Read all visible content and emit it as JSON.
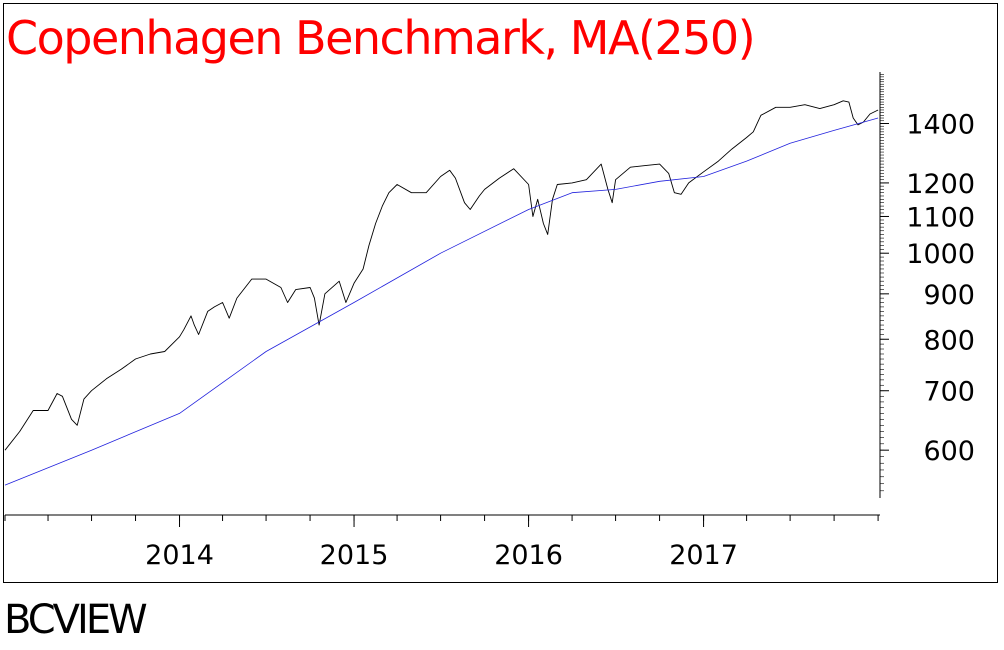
{
  "chart_data": {
    "type": "line",
    "title": "Copenhagen Benchmark, MA(250)",
    "title_color": "#ff0000",
    "y_scale": "log",
    "ylim": [
      530,
      1600
    ],
    "y_ticks": [
      600,
      700,
      800,
      900,
      1000,
      1100,
      1200,
      1400
    ],
    "xlim": [
      "2013-01-01",
      "2018-01-05"
    ],
    "x_ticks": [
      "2014",
      "2015",
      "2016",
      "2017"
    ],
    "x_tick_positions": [
      "2014-01-01",
      "2015-01-01",
      "2016-01-01",
      "2017-01-01"
    ],
    "grid": false,
    "series": [
      {
        "color": "#000000",
        "points": [
          [
            "2013-01-01",
            600
          ],
          [
            "2013-02-01",
            630
          ],
          [
            "2013-03-01",
            665
          ],
          [
            "2013-04-01",
            665
          ],
          [
            "2013-04-20",
            695
          ],
          [
            "2013-05-01",
            690
          ],
          [
            "2013-05-20",
            650
          ],
          [
            "2013-06-01",
            640
          ],
          [
            "2013-06-15",
            685
          ],
          [
            "2013-07-01",
            700
          ],
          [
            "2013-08-01",
            722
          ],
          [
            "2013-09-01",
            740
          ],
          [
            "2013-10-01",
            760
          ],
          [
            "2013-11-01",
            770
          ],
          [
            "2013-12-01",
            775
          ],
          [
            "2014-01-01",
            805
          ],
          [
            "2014-01-10",
            820
          ],
          [
            "2014-01-25",
            850
          ],
          [
            "2014-02-01",
            830
          ],
          [
            "2014-02-10",
            810
          ],
          [
            "2014-03-01",
            860
          ],
          [
            "2014-03-15",
            870
          ],
          [
            "2014-04-01",
            880
          ],
          [
            "2014-04-15",
            845
          ],
          [
            "2014-05-01",
            890
          ],
          [
            "2014-06-01",
            935
          ],
          [
            "2014-07-01",
            935
          ],
          [
            "2014-08-01",
            915
          ],
          [
            "2014-08-15",
            880
          ],
          [
            "2014-09-01",
            910
          ],
          [
            "2014-10-01",
            915
          ],
          [
            "2014-10-10",
            890
          ],
          [
            "2014-10-20",
            830
          ],
          [
            "2014-11-01",
            900
          ],
          [
            "2014-12-01",
            930
          ],
          [
            "2014-12-15",
            880
          ],
          [
            "2015-01-01",
            925
          ],
          [
            "2015-01-20",
            960
          ],
          [
            "2015-02-01",
            1020
          ],
          [
            "2015-02-15",
            1080
          ],
          [
            "2015-03-01",
            1130
          ],
          [
            "2015-03-15",
            1170
          ],
          [
            "2015-04-01",
            1195
          ],
          [
            "2015-05-01",
            1170
          ],
          [
            "2015-06-01",
            1170
          ],
          [
            "2015-07-01",
            1220
          ],
          [
            "2015-07-20",
            1240
          ],
          [
            "2015-08-01",
            1215
          ],
          [
            "2015-08-20",
            1140
          ],
          [
            "2015-09-01",
            1120
          ],
          [
            "2015-09-20",
            1160
          ],
          [
            "2015-10-01",
            1180
          ],
          [
            "2015-11-01",
            1215
          ],
          [
            "2015-12-01",
            1245
          ],
          [
            "2016-01-01",
            1195
          ],
          [
            "2016-01-10",
            1100
          ],
          [
            "2016-01-20",
            1150
          ],
          [
            "2016-02-01",
            1080
          ],
          [
            "2016-02-10",
            1050
          ],
          [
            "2016-02-20",
            1150
          ],
          [
            "2016-03-01",
            1195
          ],
          [
            "2016-04-01",
            1200
          ],
          [
            "2016-05-01",
            1210
          ],
          [
            "2016-06-01",
            1260
          ],
          [
            "2016-06-15",
            1180
          ],
          [
            "2016-06-24",
            1140
          ],
          [
            "2016-07-01",
            1210
          ],
          [
            "2016-08-01",
            1250
          ],
          [
            "2016-09-01",
            1255
          ],
          [
            "2016-10-01",
            1260
          ],
          [
            "2016-10-20",
            1230
          ],
          [
            "2016-11-01",
            1170
          ],
          [
            "2016-11-15",
            1165
          ],
          [
            "2016-12-01",
            1200
          ],
          [
            "2017-01-01",
            1235
          ],
          [
            "2017-02-01",
            1270
          ],
          [
            "2017-03-01",
            1310
          ],
          [
            "2017-04-01",
            1350
          ],
          [
            "2017-04-15",
            1370
          ],
          [
            "2017-05-01",
            1430
          ],
          [
            "2017-06-01",
            1460
          ],
          [
            "2017-07-01",
            1460
          ],
          [
            "2017-08-01",
            1470
          ],
          [
            "2017-09-01",
            1455
          ],
          [
            "2017-10-01",
            1470
          ],
          [
            "2017-10-20",
            1485
          ],
          [
            "2017-11-01",
            1480
          ],
          [
            "2017-11-10",
            1420
          ],
          [
            "2017-11-20",
            1395
          ],
          [
            "2017-12-01",
            1405
          ],
          [
            "2017-12-15",
            1435
          ],
          [
            "2018-01-01",
            1450
          ]
        ]
      },
      {
        "color": "#2222dd",
        "points": [
          [
            "2013-01-01",
            548
          ],
          [
            "2013-07-01",
            600
          ],
          [
            "2014-01-01",
            660
          ],
          [
            "2014-07-01",
            775
          ],
          [
            "2015-01-01",
            880
          ],
          [
            "2015-07-01",
            1000
          ],
          [
            "2016-01-01",
            1120
          ],
          [
            "2016-04-01",
            1170
          ],
          [
            "2016-07-01",
            1180
          ],
          [
            "2016-10-01",
            1205
          ],
          [
            "2017-01-01",
            1220
          ],
          [
            "2017-04-01",
            1270
          ],
          [
            "2017-07-01",
            1330
          ],
          [
            "2017-10-01",
            1375
          ],
          [
            "2018-01-01",
            1420
          ]
        ]
      }
    ]
  },
  "branding": {
    "text": "BCVIEW"
  }
}
